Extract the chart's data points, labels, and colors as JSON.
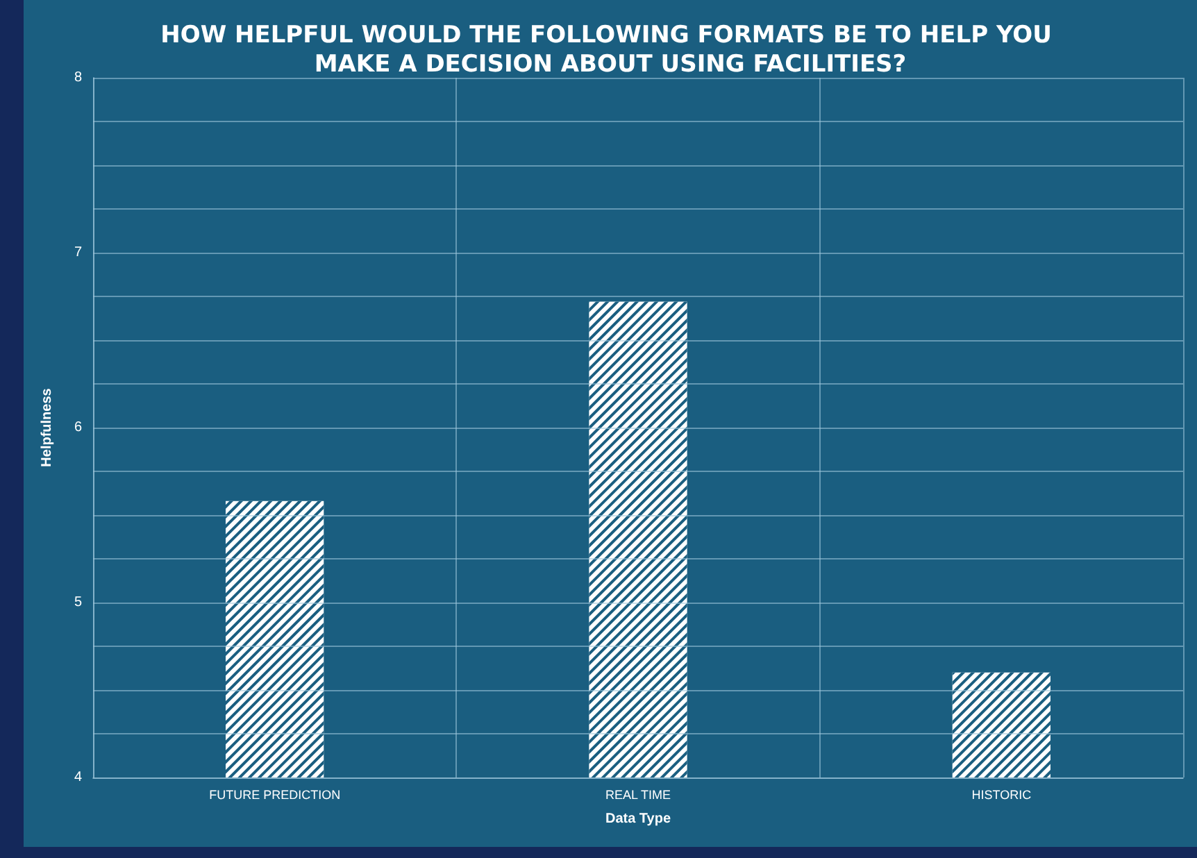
{
  "chart_data": {
    "type": "bar",
    "title": "HOW HELPFUL WOULD THE FOLLOWING FORMATS BE TO HELP YOU MAKE A DECISION ABOUT USING FACILITIES?",
    "xlabel": "Data Type",
    "ylabel": "Helpfulness",
    "categories": [
      "FUTURE PREDICTION",
      "REAL TIME",
      "HISTORIC"
    ],
    "values": [
      5.58,
      6.72,
      4.6
    ],
    "color": "#ffffff",
    "ylim": [
      4,
      8
    ],
    "yticks": [
      4,
      {
        "value": 4.25,
        "label": null
      },
      {
        "value": 4.5,
        "label": null
      },
      {
        "value": 4.75,
        "label": null
      },
      5,
      {
        "value": 5.25,
        "label": null
      },
      {
        "value": 5.5,
        "label": null
      },
      {
        "value": 5.75,
        "label": null
      },
      6,
      {
        "value": 6.25,
        "label": null
      },
      {
        "value": 6.5,
        "label": null
      },
      {
        "value": 6.75,
        "label": null
      },
      7,
      {
        "value": 7.25,
        "label": null
      },
      {
        "value": 7.5,
        "label": null
      },
      {
        "value": 7.75,
        "label": null
      },
      8
    ],
    "grid": true
  }
}
